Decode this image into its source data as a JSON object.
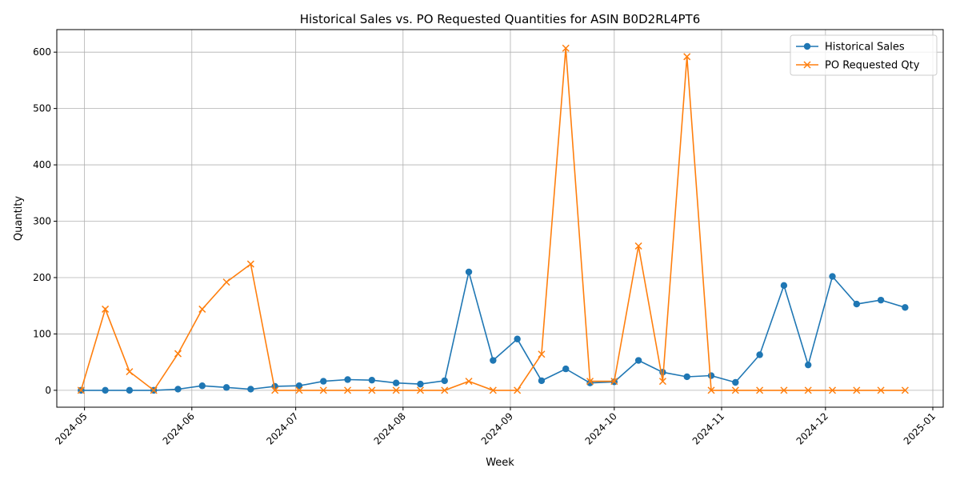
{
  "chart_data": {
    "type": "line",
    "title": "Historical Sales vs. PO Requested Quantities for ASIN B0D2RL4PT6",
    "xlabel": "Week",
    "ylabel": "Quantity",
    "ylim": [
      -30,
      640
    ],
    "xlim": [
      "2024-04-23",
      "2025-01-04"
    ],
    "grid": true,
    "legend_position": "top-right",
    "x_ticks": [
      "2024-05-01",
      "2024-06-01",
      "2024-07-01",
      "2024-08-01",
      "2024-09-01",
      "2024-10-01",
      "2024-11-01",
      "2024-12-01",
      "2025-01-01"
    ],
    "x_tick_labels": [
      "2024-05",
      "2024-06",
      "2024-07",
      "2024-08",
      "2024-09",
      "2024-10",
      "2024-11",
      "2024-12",
      "2025-01"
    ],
    "y_ticks": [
      0,
      100,
      200,
      300,
      400,
      500,
      600
    ],
    "x": [
      "2024-04-30",
      "2024-05-07",
      "2024-05-14",
      "2024-05-21",
      "2024-05-28",
      "2024-06-04",
      "2024-06-11",
      "2024-06-18",
      "2024-06-25",
      "2024-07-02",
      "2024-07-09",
      "2024-07-16",
      "2024-07-23",
      "2024-07-30",
      "2024-08-06",
      "2024-08-13",
      "2024-08-20",
      "2024-08-27",
      "2024-09-03",
      "2024-09-10",
      "2024-09-17",
      "2024-09-24",
      "2024-10-01",
      "2024-10-08",
      "2024-10-15",
      "2024-10-22",
      "2024-10-29",
      "2024-11-05",
      "2024-11-12",
      "2024-11-19",
      "2024-11-26",
      "2024-12-03",
      "2024-12-10",
      "2024-12-17",
      "2024-12-24"
    ],
    "series": [
      {
        "name": "Historical Sales",
        "color": "#1f77b4",
        "marker": "circle",
        "values": [
          0,
          0,
          0,
          0,
          2,
          8,
          5,
          2,
          7,
          8,
          16,
          19,
          18,
          13,
          11,
          17,
          210,
          53,
          91,
          17,
          38,
          13,
          15,
          53,
          32,
          24,
          26,
          14,
          63,
          186,
          45,
          202,
          153,
          160,
          147
        ]
      },
      {
        "name": "PO Requested Qty",
        "color": "#ff7f0e",
        "marker": "x",
        "values": [
          0,
          144,
          33,
          0,
          65,
          144,
          192,
          224,
          0,
          0,
          0,
          0,
          0,
          0,
          0,
          0,
          16,
          0,
          0,
          64,
          607,
          16,
          16,
          256,
          16,
          592,
          0,
          0,
          0,
          0,
          0,
          0,
          0,
          0,
          0
        ]
      }
    ]
  }
}
